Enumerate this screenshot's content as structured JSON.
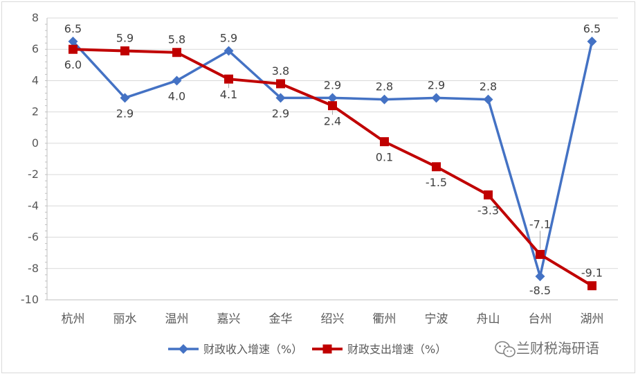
{
  "chart_data": {
    "type": "line",
    "categories": [
      "杭州",
      "丽水",
      "温州",
      "嘉兴",
      "金华",
      "绍兴",
      "衢州",
      "宁波",
      "舟山",
      "台州",
      "湖州"
    ],
    "ylim": [
      -10,
      8
    ],
    "yticks": [
      8,
      6,
      4,
      2,
      0,
      -2,
      -4,
      -6,
      -8,
      -10
    ],
    "grid": true,
    "legend_position": "bottom",
    "series": [
      {
        "name": "财政收入增速（%）",
        "color": "#4472c4",
        "marker": "diamond",
        "values": [
          6.5,
          2.9,
          4.0,
          5.9,
          2.9,
          2.9,
          2.8,
          2.9,
          2.8,
          -8.5,
          6.5
        ],
        "labels": [
          "6.5",
          "2.9",
          "4.0",
          "5.9",
          "2.9",
          "2.9",
          "2.8",
          "2.9",
          "2.8",
          "-8.5",
          "6.5"
        ],
        "label_pos": [
          "above",
          "below",
          "below",
          "above",
          "below",
          "above",
          "above",
          "above",
          "above",
          "below",
          "above"
        ]
      },
      {
        "name": "财政支出增速（%）",
        "color": "#c00000",
        "marker": "square",
        "values": [
          6.0,
          5.9,
          5.8,
          4.1,
          3.8,
          2.4,
          0.1,
          -1.5,
          -3.3,
          -7.1,
          -9.1
        ],
        "labels": [
          "6.0",
          "5.9",
          "5.8",
          "4.1",
          "3.8",
          "2.4",
          "0.1",
          "-1.5",
          "-3.3",
          "-7.1",
          "-9.1"
        ],
        "label_pos": [
          "below",
          "above",
          "above",
          "below",
          "above",
          "below",
          "below",
          "below",
          "below",
          "above",
          "above"
        ]
      }
    ]
  },
  "watermark": {
    "text": "兰财税海研语",
    "icon": "wechat-icon"
  }
}
